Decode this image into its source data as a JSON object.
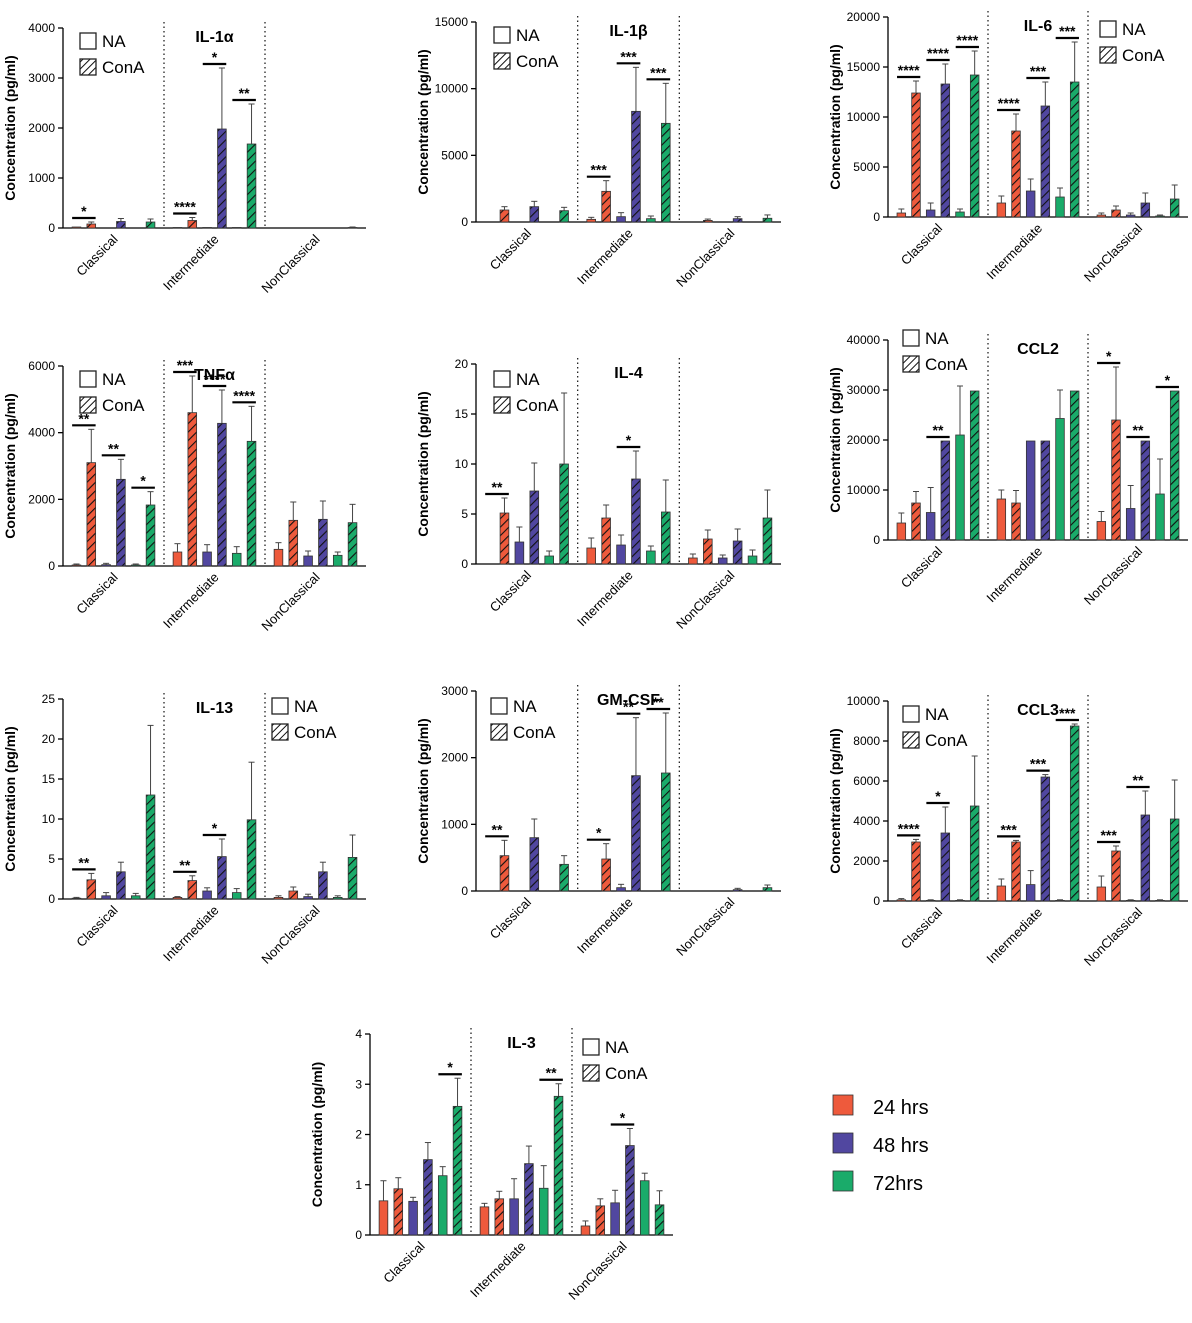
{
  "series_legend": [
    {
      "label": "24 hrs",
      "color": "#ee5a3c"
    },
    {
      "label": "48 hrs",
      "color": "#5147a0"
    },
    {
      "label": "72hrs",
      "color": "#1aab6a"
    }
  ],
  "treatment_legend": {
    "na": "NA",
    "cona": "ConA"
  },
  "chart_data": [
    {
      "id": "il1a",
      "type": "bar",
      "title": "IL-1α",
      "ylabel": "Concentration (pg/ml)",
      "ylim": [
        0,
        4000
      ],
      "yticks": [
        0,
        1000,
        2000,
        3000,
        4000
      ],
      "categories": [
        "Classical",
        "Intermediate",
        "NonClassical"
      ],
      "values": [
        [
          20,
          80,
          0,
          130,
          0,
          120
        ],
        [
          10,
          150,
          10,
          1980,
          10,
          1680
        ],
        [
          0,
          0,
          0,
          0,
          0,
          10
        ]
      ],
      "errors": [
        [
          0,
          40,
          0,
          60,
          0,
          60
        ],
        [
          0,
          60,
          0,
          1220,
          0,
          800
        ],
        [
          0,
          0,
          0,
          0,
          0,
          10
        ]
      ],
      "sig": [
        {
          "group": 0,
          "bar": 1,
          "label": "*"
        },
        {
          "group": 1,
          "bar": 1,
          "label": "****"
        },
        {
          "group": 1,
          "bar": 3,
          "label": "*"
        },
        {
          "group": 1,
          "bar": 5,
          "label": "**"
        }
      ],
      "legend": "top-left"
    },
    {
      "id": "il1b",
      "type": "bar",
      "title": "IL-1β",
      "ylabel": "Concentration (pg/ml)",
      "ylim": [
        0,
        15000
      ],
      "yticks": [
        0,
        5000,
        10000,
        15000
      ],
      "categories": [
        "Classical",
        "Intermediate",
        "NonClassical"
      ],
      "values": [
        [
          0,
          900,
          0,
          1150,
          0,
          850
        ],
        [
          200,
          2300,
          400,
          8300,
          250,
          7400
        ],
        [
          0,
          120,
          0,
          250,
          0,
          280
        ]
      ],
      "errors": [
        [
          0,
          250,
          0,
          400,
          0,
          250
        ],
        [
          150,
          800,
          300,
          3300,
          200,
          3000
        ],
        [
          0,
          100,
          0,
          150,
          0,
          250
        ]
      ],
      "sig": [
        {
          "group": 1,
          "bar": 1,
          "label": "***"
        },
        {
          "group": 1,
          "bar": 3,
          "label": "***"
        },
        {
          "group": 1,
          "bar": 5,
          "label": "***"
        }
      ],
      "legend": "top-left"
    },
    {
      "id": "il6",
      "type": "bar",
      "title": "IL-6",
      "ylabel": "Concentration (pg/ml)",
      "ylim": [
        0,
        20000
      ],
      "yticks": [
        0,
        5000,
        10000,
        15000,
        20000
      ],
      "categories": [
        "Classical",
        "Intermediate",
        "NonClassical"
      ],
      "values": [
        [
          400,
          12400,
          700,
          13300,
          500,
          14200
        ],
        [
          1400,
          8600,
          2600,
          11100,
          2000,
          13500
        ],
        [
          200,
          700,
          200,
          1400,
          100,
          1800
        ]
      ],
      "errors": [
        [
          400,
          1200,
          700,
          2000,
          300,
          2400
        ],
        [
          700,
          1700,
          1200,
          2400,
          900,
          4000
        ],
        [
          200,
          400,
          200,
          1000,
          100,
          1400
        ]
      ],
      "sig": [
        {
          "group": 0,
          "bar": 1,
          "label": "****"
        },
        {
          "group": 0,
          "bar": 3,
          "label": "****"
        },
        {
          "group": 0,
          "bar": 5,
          "label": "****"
        },
        {
          "group": 1,
          "bar": 1,
          "label": "****"
        },
        {
          "group": 1,
          "bar": 3,
          "label": "***"
        },
        {
          "group": 1,
          "bar": 5,
          "label": "***"
        }
      ],
      "legend": "top-right"
    },
    {
      "id": "tnfa",
      "type": "bar",
      "title": "TNFα",
      "ylabel": "Concentration (pg/ml)",
      "ylim": [
        0,
        6000
      ],
      "yticks": [
        0,
        2000,
        4000,
        6000
      ],
      "categories": [
        "Classical",
        "Intermediate",
        "NonClassical"
      ],
      "values": [
        [
          30,
          3100,
          40,
          2600,
          30,
          1830
        ],
        [
          420,
          4600,
          420,
          4280,
          380,
          3740
        ],
        [
          500,
          1370,
          300,
          1400,
          320,
          1300
        ]
      ],
      "errors": [
        [
          30,
          1000,
          40,
          600,
          30,
          400
        ],
        [
          250,
          1100,
          220,
          1000,
          200,
          1050
        ],
        [
          200,
          550,
          150,
          550,
          100,
          550
        ]
      ],
      "sig": [
        {
          "group": 0,
          "bar": 1,
          "label": "**"
        },
        {
          "group": 0,
          "bar": 3,
          "label": "**"
        },
        {
          "group": 0,
          "bar": 5,
          "label": "*"
        },
        {
          "group": 1,
          "bar": 1,
          "label": "***"
        },
        {
          "group": 1,
          "bar": 3,
          "label": "****"
        },
        {
          "group": 1,
          "bar": 5,
          "label": "****"
        }
      ],
      "legend": "top-left"
    },
    {
      "id": "il4",
      "type": "bar",
      "title": "IL-4",
      "ylabel": "Concentration (pg/ml)",
      "ylim": [
        0,
        20
      ],
      "yticks": [
        0,
        5,
        10,
        15,
        20
      ],
      "categories": [
        "Classical",
        "Intermediate",
        "NonClassical"
      ],
      "values": [
        [
          0,
          5.1,
          2.2,
          7.3,
          0.8,
          10.0
        ],
        [
          1.6,
          4.6,
          1.9,
          8.5,
          1.3,
          5.2
        ],
        [
          0.6,
          2.5,
          0.6,
          2.3,
          0.8,
          4.6
        ]
      ],
      "errors": [
        [
          0,
          1.5,
          1.5,
          2.8,
          0.5,
          7.1
        ],
        [
          1.0,
          1.3,
          1.0,
          2.8,
          0.5,
          3.2
        ],
        [
          0.4,
          0.9,
          0.3,
          1.2,
          0.6,
          2.8
        ]
      ],
      "sig": [
        {
          "group": 0,
          "bar": 1,
          "label": "**"
        },
        {
          "group": 1,
          "bar": 3,
          "label": "*"
        }
      ],
      "legend": "top-left"
    },
    {
      "id": "ccl2",
      "type": "bar",
      "title": "CCL2",
      "ylabel": "Concentration (pg/ml)",
      "ylim": [
        0,
        40000
      ],
      "yticks": [
        0,
        10000,
        20000,
        30000,
        40000
      ],
      "categories": [
        "Classical",
        "Intermediate",
        "NonClassical"
      ],
      "values": [
        [
          3400,
          7400,
          5500,
          19800,
          21000,
          29800
        ],
        [
          8200,
          7400,
          19800,
          19800,
          24300,
          29800
        ],
        [
          3700,
          24000,
          6300,
          19800,
          9200,
          29800
        ]
      ],
      "errors": [
        [
          2000,
          2300,
          5000,
          0,
          9800,
          0
        ],
        [
          1800,
          2500,
          0,
          0,
          5700,
          0
        ],
        [
          2000,
          10600,
          4600,
          0,
          7000,
          0
        ]
      ],
      "sig": [
        {
          "group": 0,
          "bar": 3,
          "label": "**"
        },
        {
          "group": 2,
          "bar": 1,
          "label": "*"
        },
        {
          "group": 2,
          "bar": 3,
          "label": "**"
        },
        {
          "group": 2,
          "bar": 5,
          "label": "*"
        }
      ],
      "legend": "top-left"
    },
    {
      "id": "il13",
      "type": "bar",
      "title": "IL-13",
      "ylabel": "Concentration (pg/ml)",
      "ylim": [
        0,
        25
      ],
      "yticks": [
        0,
        5,
        10,
        15,
        20,
        25
      ],
      "categories": [
        "Classical",
        "Intermediate",
        "NonClassical"
      ],
      "values": [
        [
          0.1,
          2.4,
          0.4,
          3.4,
          0.4,
          13.0
        ],
        [
          0.2,
          2.3,
          1.0,
          5.3,
          0.8,
          9.9
        ],
        [
          0.2,
          1.0,
          0.3,
          3.4,
          0.2,
          5.2
        ]
      ],
      "errors": [
        [
          0.1,
          0.8,
          0.4,
          1.2,
          0.3,
          8.7
        ],
        [
          0.1,
          0.6,
          0.4,
          2.2,
          0.5,
          7.2
        ],
        [
          0.2,
          0.5,
          0.3,
          1.2,
          0.2,
          2.8
        ]
      ],
      "sig": [
        {
          "group": 0,
          "bar": 1,
          "label": "**"
        },
        {
          "group": 1,
          "bar": 1,
          "label": "**"
        },
        {
          "group": 1,
          "bar": 3,
          "label": "*"
        }
      ],
      "legend": "top-right"
    },
    {
      "id": "gmcsf",
      "type": "bar",
      "title": "GM-CSF",
      "ylabel": "Concentration (pg/ml)",
      "ylim": [
        0,
        3000
      ],
      "yticks": [
        0,
        1000,
        2000,
        3000
      ],
      "categories": [
        "Classical",
        "Intermediate",
        "NonClassical"
      ],
      "values": [
        [
          0,
          530,
          0,
          800,
          0,
          400
        ],
        [
          0,
          480,
          50,
          1730,
          0,
          1770
        ],
        [
          0,
          0,
          0,
          20,
          0,
          50
        ]
      ],
      "errors": [
        [
          0,
          230,
          0,
          280,
          0,
          130
        ],
        [
          0,
          230,
          50,
          870,
          0,
          900
        ],
        [
          0,
          0,
          0,
          20,
          0,
          40
        ]
      ],
      "sig": [
        {
          "group": 0,
          "bar": 1,
          "label": "**"
        },
        {
          "group": 1,
          "bar": 1,
          "label": "*"
        },
        {
          "group": 1,
          "bar": 3,
          "label": "**"
        },
        {
          "group": 1,
          "bar": 5,
          "label": "**"
        }
      ],
      "legend": "top-left"
    },
    {
      "id": "ccl3",
      "type": "bar",
      "title": "CCL3",
      "ylabel": "Concentration (pg/ml)",
      "ylim": [
        0,
        10000
      ],
      "yticks": [
        0,
        2000,
        4000,
        6000,
        8000,
        10000
      ],
      "categories": [
        "Classical",
        "Intermediate",
        "NonClassical"
      ],
      "values": [
        [
          60,
          2950,
          30,
          3400,
          30,
          4750
        ],
        [
          750,
          2950,
          820,
          6200,
          30,
          8750
        ],
        [
          700,
          2500,
          30,
          4300,
          30,
          4100
        ]
      ],
      "errors": [
        [
          60,
          130,
          30,
          1300,
          30,
          2500
        ],
        [
          350,
          80,
          700,
          120,
          30,
          100
        ],
        [
          550,
          250,
          30,
          1200,
          30,
          1950
        ]
      ],
      "sig": [
        {
          "group": 0,
          "bar": 1,
          "label": "****"
        },
        {
          "group": 0,
          "bar": 3,
          "label": "*"
        },
        {
          "group": 1,
          "bar": 1,
          "label": "***"
        },
        {
          "group": 1,
          "bar": 3,
          "label": "***"
        },
        {
          "group": 1,
          "bar": 5,
          "label": "***"
        },
        {
          "group": 2,
          "bar": 1,
          "label": "***"
        },
        {
          "group": 2,
          "bar": 3,
          "label": "**"
        }
      ],
      "legend": "top-left"
    },
    {
      "id": "il3",
      "type": "bar",
      "title": "IL-3",
      "ylabel": "Concentration (pg/ml)",
      "ylim": [
        0,
        4
      ],
      "yticks": [
        0,
        1,
        2,
        3,
        4
      ],
      "categories": [
        "Classical",
        "Intermediate",
        "NonClassical"
      ],
      "values": [
        [
          0.68,
          0.92,
          0.67,
          1.5,
          1.18,
          2.56
        ],
        [
          0.56,
          0.72,
          0.72,
          1.42,
          0.93,
          2.76
        ],
        [
          0.18,
          0.58,
          0.64,
          1.78,
          1.08,
          0.6
        ]
      ],
      "errors": [
        [
          0.4,
          0.22,
          0.08,
          0.34,
          0.18,
          0.56
        ],
        [
          0.07,
          0.15,
          0.4,
          0.35,
          0.45,
          0.25
        ],
        [
          0.1,
          0.14,
          0.25,
          0.34,
          0.15,
          0.28
        ]
      ],
      "sig": [
        {
          "group": 0,
          "bar": 5,
          "label": "*"
        },
        {
          "group": 1,
          "bar": 5,
          "label": "**"
        },
        {
          "group": 2,
          "bar": 3,
          "label": "*"
        }
      ],
      "legend": "top-right"
    }
  ]
}
